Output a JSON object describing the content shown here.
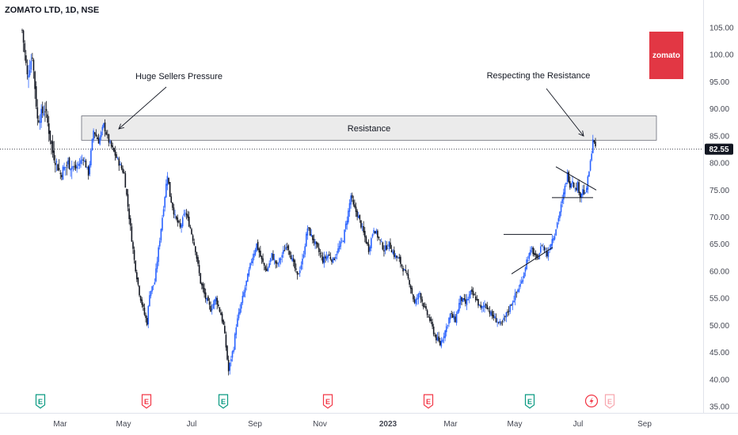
{
  "chart_data": {
    "type": "candlestick",
    "title": "ZOMATO LTD, 1D, NSE",
    "symbol": "ZOMATO LTD",
    "interval": "1D",
    "exchange": "NSE",
    "x_tick_labels": [
      "Mar",
      "May",
      "Jul",
      "Sep",
      "Nov",
      "2023",
      "Mar",
      "May",
      "Jul",
      "Sep"
    ],
    "y_tick_values": [
      35,
      40,
      45,
      50,
      55,
      60,
      65,
      70,
      75,
      80,
      85,
      90,
      95,
      100,
      105
    ],
    "y_tick_labels": [
      "35.00",
      "40.00",
      "45.00",
      "50.00",
      "55.00",
      "60.00",
      "65.00",
      "70.00",
      "75.00",
      "80.00",
      "85.00",
      "90.00",
      "95.00",
      "100.00",
      "105.00"
    ],
    "ylim": [
      33.5,
      110
    ],
    "last_price": 82.55,
    "last_price_label": "82.55",
    "resistance_zone": {
      "low": 84.2,
      "high": 88.7,
      "label": "Resistance"
    },
    "annotations": [
      {
        "text": "Huge Sellers Pressure"
      },
      {
        "text": "Respecting the Resistance"
      }
    ],
    "logo_text": "zomato",
    "colors": {
      "up": "#2962ff",
      "down": "#131722",
      "resistance_fill": "#ebebeb",
      "logo_bg": "#e23744",
      "earnings_green": "#089981",
      "earnings_red": "#f23645",
      "price_tag_bg": "#131722"
    },
    "price_path": [
      [
        0,
        104.5
      ],
      [
        4,
        96
      ],
      [
        8,
        100
      ],
      [
        12,
        88
      ],
      [
        18,
        90
      ],
      [
        24,
        82
      ],
      [
        30,
        78
      ],
      [
        36,
        80
      ],
      [
        42,
        79
      ],
      [
        48,
        81
      ],
      [
        52,
        78
      ],
      [
        56,
        86
      ],
      [
        60,
        84
      ],
      [
        64,
        87
      ],
      [
        68,
        84
      ],
      [
        72,
        82
      ],
      [
        76,
        80
      ],
      [
        80,
        78
      ],
      [
        84,
        70
      ],
      [
        88,
        62
      ],
      [
        92,
        56
      ],
      [
        96,
        52
      ],
      [
        98,
        50.5
      ],
      [
        100,
        56
      ],
      [
        104,
        58
      ],
      [
        108,
        66
      ],
      [
        112,
        74
      ],
      [
        114,
        78
      ],
      [
        116,
        74
      ],
      [
        120,
        70
      ],
      [
        124,
        68
      ],
      [
        128,
        71
      ],
      [
        132,
        68
      ],
      [
        136,
        64
      ],
      [
        140,
        58
      ],
      [
        144,
        55
      ],
      [
        148,
        53
      ],
      [
        152,
        55
      ],
      [
        156,
        52
      ],
      [
        158,
        50
      ],
      [
        160,
        46
      ],
      [
        162,
        41.5
      ],
      [
        164,
        44
      ],
      [
        166,
        46
      ],
      [
        168,
        50
      ],
      [
        172,
        54
      ],
      [
        176,
        58
      ],
      [
        180,
        62
      ],
      [
        184,
        65
      ],
      [
        188,
        62
      ],
      [
        192,
        60
      ],
      [
        196,
        63
      ],
      [
        200,
        61
      ],
      [
        204,
        63
      ],
      [
        208,
        65
      ],
      [
        212,
        62
      ],
      [
        216,
        59
      ],
      [
        220,
        62
      ],
      [
        224,
        68
      ],
      [
        228,
        66
      ],
      [
        232,
        64
      ],
      [
        236,
        62
      ],
      [
        240,
        63
      ],
      [
        244,
        62
      ],
      [
        248,
        64
      ],
      [
        252,
        66
      ],
      [
        256,
        71
      ],
      [
        258,
        74
      ],
      [
        260,
        72
      ],
      [
        264,
        70
      ],
      [
        268,
        67
      ],
      [
        272,
        64
      ],
      [
        276,
        68
      ],
      [
        280,
        66
      ],
      [
        284,
        64
      ],
      [
        288,
        65
      ],
      [
        292,
        63
      ],
      [
        296,
        62
      ],
      [
        300,
        60
      ],
      [
        304,
        58
      ],
      [
        308,
        54
      ],
      [
        312,
        56
      ],
      [
        316,
        53
      ],
      [
        320,
        51
      ],
      [
        324,
        48
      ],
      [
        328,
        46.5
      ],
      [
        332,
        49
      ],
      [
        336,
        52
      ],
      [
        340,
        51
      ],
      [
        344,
        55
      ],
      [
        348,
        54
      ],
      [
        352,
        56
      ],
      [
        356,
        55
      ],
      [
        360,
        53
      ],
      [
        364,
        54
      ],
      [
        368,
        52
      ],
      [
        372,
        51
      ],
      [
        376,
        50
      ],
      [
        380,
        52
      ],
      [
        384,
        54
      ],
      [
        388,
        56
      ],
      [
        392,
        58
      ],
      [
        396,
        62
      ],
      [
        400,
        64
      ],
      [
        404,
        62
      ],
      [
        408,
        65
      ],
      [
        412,
        63
      ],
      [
        416,
        66
      ],
      [
        418,
        67
      ],
      [
        420,
        69
      ],
      [
        424,
        73
      ],
      [
        428,
        78
      ],
      [
        430,
        76
      ],
      [
        432,
        77
      ],
      [
        434,
        75
      ],
      [
        436,
        76
      ],
      [
        438,
        74
      ],
      [
        440,
        75
      ],
      [
        442,
        74
      ],
      [
        444,
        77
      ],
      [
        446,
        80
      ],
      [
        448,
        84.5
      ],
      [
        450,
        82.55
      ]
    ],
    "flag_levels": {
      "resistance": 66.8,
      "lower_trend_start": 59.5,
      "lower_trend_end": 64.4
    },
    "triangle_levels": {
      "upper_start": 79.3,
      "upper_end": 75.0,
      "base": 73.6
    }
  }
}
